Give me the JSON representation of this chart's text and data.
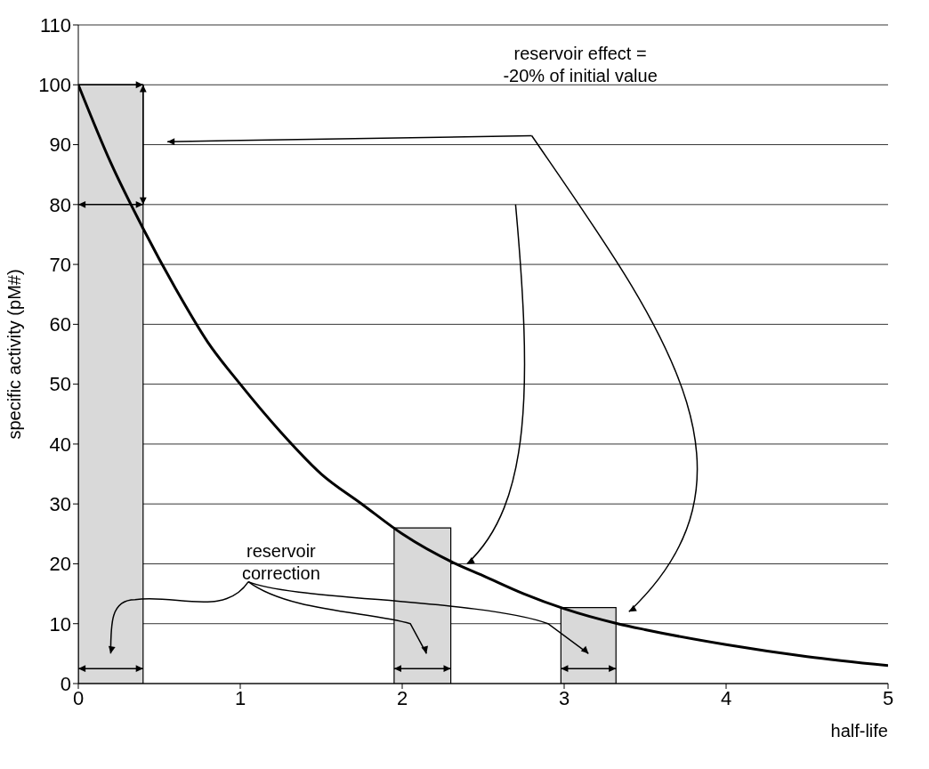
{
  "chart_data": {
    "type": "line",
    "xlabel": "half-life",
    "ylabel": "specific activity (pM#)",
    "x": [
      0,
      0.2,
      0.4,
      0.6,
      0.8,
      1,
      1.25,
      1.5,
      1.75,
      2,
      2.33,
      2.5,
      2.75,
      3,
      3.33,
      3.5,
      4,
      4.5,
      5
    ],
    "series": [
      {
        "color": "#000000",
        "values": [
          100,
          87,
          76,
          66,
          57,
          50,
          42,
          35,
          30,
          25,
          20,
          18,
          15,
          12.5,
          10,
          9,
          6.5,
          4.5,
          3
        ]
      }
    ],
    "xlim": [
      0,
      5
    ],
    "xticks": [
      0,
      1,
      2,
      3,
      4,
      5
    ],
    "ylim": [
      0,
      110
    ],
    "yticks": [
      0,
      10,
      20,
      30,
      40,
      50,
      60,
      70,
      80,
      90,
      100,
      110
    ],
    "bands": [
      {
        "axis": "x",
        "from": 0,
        "to": 0.4,
        "color": "#d9d9d9"
      },
      {
        "axis": "x",
        "from": 1.95,
        "to": 2.3,
        "color": "#d9d9d9"
      },
      {
        "axis": "x",
        "from": 2.98,
        "to": 3.32,
        "color": "#d9d9d9"
      }
    ],
    "annotations": [
      "reservoir effect = -20% of initial value",
      "reservoir correction"
    ],
    "grid": "y",
    "legend": false,
    "marker": "none",
    "line_style": "solid"
  }
}
